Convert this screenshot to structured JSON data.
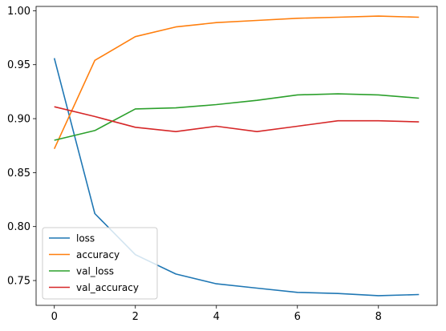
{
  "chart_data": {
    "type": "line",
    "x": [
      0,
      1,
      2,
      3,
      4,
      5,
      6,
      7,
      8,
      9
    ],
    "series": [
      {
        "name": "loss",
        "color": "#1f77b4",
        "values": [
          0.956,
          0.812,
          0.774,
          0.756,
          0.747,
          0.743,
          0.739,
          0.738,
          0.736,
          0.737
        ]
      },
      {
        "name": "accuracy",
        "color": "#ff7f0e",
        "values": [
          0.872,
          0.954,
          0.976,
          0.985,
          0.989,
          0.991,
          0.993,
          0.994,
          0.995,
          0.994
        ]
      },
      {
        "name": "val_loss",
        "color": "#2ca02c",
        "values": [
          0.88,
          0.889,
          0.909,
          0.91,
          0.913,
          0.917,
          0.922,
          0.923,
          0.922,
          0.919
        ]
      },
      {
        "name": "val_accuracy",
        "color": "#d62728",
        "values": [
          0.911,
          0.902,
          0.892,
          0.888,
          0.893,
          0.888,
          0.893,
          0.898,
          0.898,
          0.897
        ]
      }
    ],
    "xlim": [
      -0.45,
      9.45
    ],
    "ylim": [
      0.727,
      1.004
    ],
    "xticks": [
      0,
      2,
      4,
      6,
      8
    ],
    "xtick_labels": [
      "0",
      "2",
      "4",
      "6",
      "8"
    ],
    "yticks": [
      0.75,
      0.8,
      0.85,
      0.9,
      0.95,
      1.0
    ],
    "ytick_labels": [
      "0.75",
      "0.80",
      "0.85",
      "0.90",
      "0.95",
      "1.00"
    ],
    "grid": false,
    "legend_position": "lower-left"
  }
}
